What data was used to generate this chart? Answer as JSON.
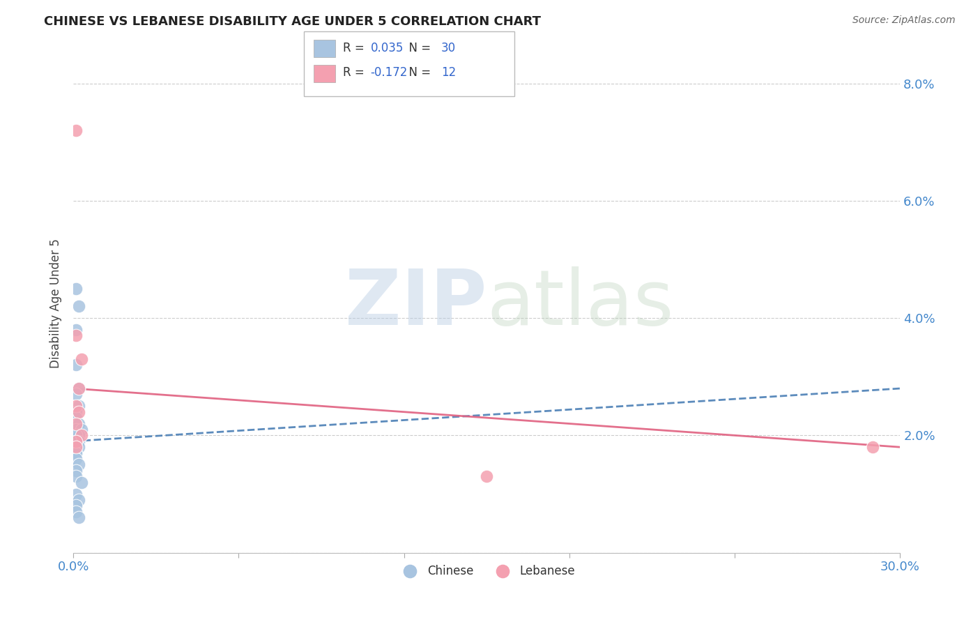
{
  "title": "CHINESE VS LEBANESE DISABILITY AGE UNDER 5 CORRELATION CHART",
  "source": "Source: ZipAtlas.com",
  "ylabel": "Disability Age Under 5",
  "xlim": [
    0.0,
    0.3
  ],
  "ylim": [
    0.0,
    0.085
  ],
  "xticks": [
    0.0,
    0.06,
    0.12,
    0.18,
    0.24,
    0.3
  ],
  "yticks": [
    0.0,
    0.02,
    0.04,
    0.06,
    0.08
  ],
  "yticklabels": [
    "",
    "2.0%",
    "4.0%",
    "6.0%",
    "8.0%"
  ],
  "chinese_R": 0.035,
  "chinese_N": 30,
  "lebanese_R": -0.172,
  "lebanese_N": 12,
  "chinese_color": "#a8c4e0",
  "lebanese_color": "#f4a0b0",
  "chinese_line_color": "#4a7fb5",
  "lebanese_line_color": "#e06080",
  "chinese_x": [
    0.001,
    0.002,
    0.001,
    0.001,
    0.002,
    0.001,
    0.002,
    0.001,
    0.001,
    0.002,
    0.001,
    0.003,
    0.002,
    0.001,
    0.002,
    0.001,
    0.001,
    0.002,
    0.001,
    0.001,
    0.001,
    0.002,
    0.001,
    0.001,
    0.003,
    0.001,
    0.002,
    0.001,
    0.001,
    0.002
  ],
  "chinese_y": [
    0.045,
    0.042,
    0.038,
    0.032,
    0.028,
    0.027,
    0.025,
    0.024,
    0.023,
    0.022,
    0.021,
    0.021,
    0.02,
    0.02,
    0.019,
    0.019,
    0.018,
    0.018,
    0.017,
    0.017,
    0.016,
    0.015,
    0.014,
    0.013,
    0.012,
    0.01,
    0.009,
    0.008,
    0.007,
    0.006
  ],
  "lebanese_x": [
    0.001,
    0.001,
    0.003,
    0.002,
    0.001,
    0.002,
    0.001,
    0.003,
    0.001,
    0.15,
    0.29,
    0.001
  ],
  "lebanese_y": [
    0.072,
    0.037,
    0.033,
    0.028,
    0.025,
    0.024,
    0.022,
    0.02,
    0.019,
    0.013,
    0.018,
    0.018
  ],
  "chinese_trendline_x": [
    0.0,
    0.3
  ],
  "chinese_trendline_y": [
    0.019,
    0.028
  ],
  "lebanese_trendline_x": [
    0.0,
    0.3
  ],
  "lebanese_trendline_y": [
    0.028,
    0.018
  ],
  "watermark_zip": "ZIP",
  "watermark_atlas": "atlas",
  "background_color": "#ffffff",
  "grid_color": "#cccccc",
  "title_color": "#222222",
  "source_color": "#666666",
  "tick_color": "#4488cc",
  "label_color": "#444444",
  "legend_blue_color": "#3366cc"
}
